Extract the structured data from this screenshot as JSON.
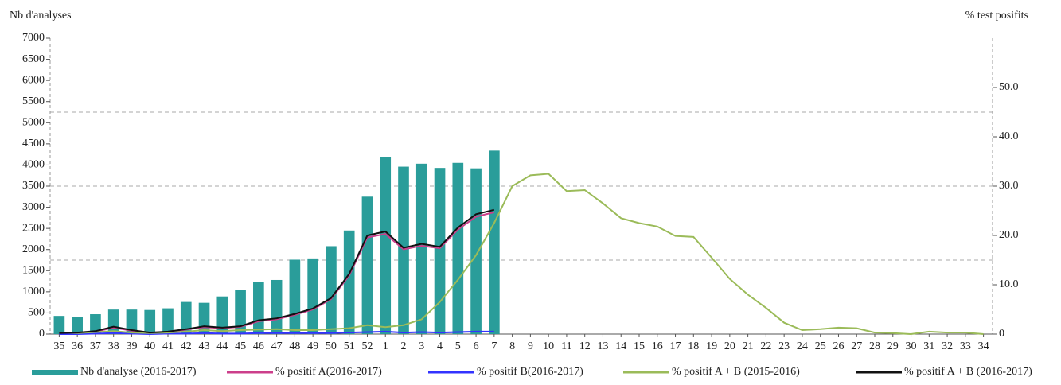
{
  "chart_data": {
    "type": "bar",
    "y_label": "Nb d'analyses",
    "y2_label": "% test posifits",
    "categories": [
      "35",
      "36",
      "37",
      "38",
      "39",
      "40",
      "41",
      "42",
      "43",
      "44",
      "45",
      "46",
      "47",
      "48",
      "49",
      "50",
      "51",
      "52",
      "1",
      "2",
      "3",
      "4",
      "5",
      "6",
      "7",
      "8",
      "9",
      "10",
      "11",
      "12",
      "13",
      "14",
      "15",
      "16",
      "17",
      "18",
      "19",
      "20",
      "21",
      "22",
      "23",
      "24",
      "25",
      "26",
      "27",
      "28",
      "29",
      "30",
      "31",
      "32",
      "33",
      "34"
    ],
    "ylim": [
      0,
      7000
    ],
    "yticks": [
      0,
      500,
      1000,
      1500,
      2000,
      2500,
      3000,
      3500,
      4000,
      4500,
      5000,
      5500,
      6000,
      6500,
      7000
    ],
    "y2lim": [
      0,
      60
    ],
    "y2ticks": [
      0,
      {
        "value": 10,
        "label": "10.0"
      },
      {
        "value": 20,
        "label": "20.0"
      },
      {
        "value": 30,
        "label": "30.0"
      },
      {
        "value": 40,
        "label": "40.0"
      },
      {
        "value": 50,
        "label": "50.0"
      }
    ],
    "grid_lines": [
      1750,
      3500,
      5250
    ],
    "series": [
      {
        "name": "Nb d'analyse (2016-2017)",
        "type": "bar",
        "color": "#2a9d9a",
        "values": [
          430,
          400,
          470,
          580,
          580,
          570,
          610,
          760,
          740,
          890,
          1040,
          1230,
          1280,
          1760,
          1790,
          2080,
          2450,
          3250,
          4180,
          3960,
          4030,
          3930,
          4050,
          3920,
          4340,
          null,
          null,
          null,
          null,
          null,
          null,
          null,
          null,
          null,
          null,
          null,
          null,
          null,
          null,
          null,
          null,
          null,
          null,
          null,
          null,
          null,
          null,
          null,
          null,
          null,
          null,
          null
        ]
      },
      {
        "name": "% positif A(2016-2017)",
        "type": "line",
        "axis": "y2",
        "color": "#cc3f8b",
        "values": [
          0.2,
          0.3,
          0.5,
          1.3,
          0.7,
          0.3,
          0.4,
          0.9,
          1.4,
          1.2,
          1.5,
          2.6,
          3.0,
          3.9,
          5.0,
          7.1,
          11.9,
          19.6,
          20.3,
          17.2,
          17.9,
          17.4,
          21.2,
          23.8,
          24.7,
          null,
          null,
          null,
          null,
          null,
          null,
          null,
          null,
          null,
          null,
          null,
          null,
          null,
          null,
          null,
          null,
          null,
          null,
          null,
          null,
          null,
          null,
          null,
          null,
          null,
          null,
          null
        ]
      },
      {
        "name": "% positif B(2016-2017)",
        "type": "line",
        "axis": "y2",
        "color": "#3333ff",
        "values": [
          0,
          0,
          0.1,
          0.2,
          0.1,
          0,
          0.1,
          0.1,
          0.2,
          0.1,
          0.1,
          0.2,
          0.2,
          0.2,
          0.2,
          0.2,
          0.3,
          0.4,
          0.5,
          0.3,
          0.4,
          0.3,
          0.4,
          0.5,
          0.5,
          null,
          null,
          null,
          null,
          null,
          null,
          null,
          null,
          null,
          null,
          null,
          null,
          null,
          null,
          null,
          null,
          null,
          null,
          null,
          null,
          null,
          null,
          null,
          null,
          null,
          null,
          null
        ]
      },
      {
        "name": "% positif A + B (2015-2016)",
        "type": "line",
        "axis": "y2",
        "color": "#9bbb59",
        "values": [
          0.3,
          0.2,
          0.4,
          0.6,
          0.3,
          0.2,
          0.3,
          0.5,
          0.8,
          0.6,
          0.8,
          0.9,
          1.0,
          0.8,
          0.8,
          1.0,
          1.2,
          1.8,
          1.4,
          1.8,
          3.0,
          6.5,
          11,
          16,
          22.5,
          30,
          32.2,
          32.5,
          29,
          29.2,
          26.5,
          23.5,
          22.5,
          21.8,
          19.9,
          19.7,
          15.5,
          11.2,
          8,
          5.3,
          2.3,
          0.8,
          1.0,
          1.3,
          1.2,
          0.3,
          0.2,
          0,
          0.5,
          0.3,
          0.3,
          0
        ]
      },
      {
        "name": "% positif A + B (2016-2017)",
        "type": "line",
        "axis": "y2",
        "color": "#111111",
        "values": [
          0.2,
          0.3,
          0.6,
          1.5,
          0.8,
          0.3,
          0.5,
          1.0,
          1.6,
          1.3,
          1.6,
          2.8,
          3.2,
          4.1,
          5.2,
          7.3,
          12.2,
          20,
          20.8,
          17.5,
          18.3,
          17.7,
          21.6,
          24.3,
          25.2,
          null,
          null,
          null,
          null,
          null,
          null,
          null,
          null,
          null,
          null,
          null,
          null,
          null,
          null,
          null,
          null,
          null,
          null,
          null,
          null,
          null,
          null,
          null,
          null,
          null,
          null,
          null
        ]
      }
    ]
  }
}
